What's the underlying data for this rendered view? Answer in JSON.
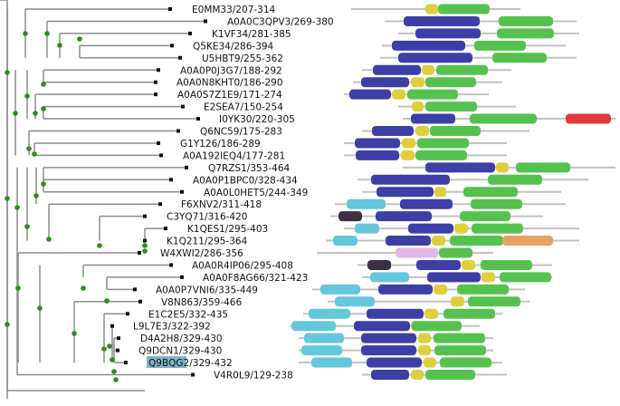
{
  "colors": {
    "tree_line": "#8c8c8c",
    "node": "#2e8b1e",
    "backbone": "#c2c2c2",
    "highlight": "#7eb4c4"
  },
  "sequences": [
    {
      "label": "E0MM33/207-314",
      "highlighted": false
    },
    {
      "label": "A0A0C3QPV3/269-380",
      "highlighted": false
    },
    {
      "label": "K1VF34/281-385",
      "highlighted": false
    },
    {
      "label": "Q5KE34/286-394",
      "highlighted": false
    },
    {
      "label": "U5HBT9/255-362",
      "highlighted": false
    },
    {
      "label": "A0A0P0J3G7/188-292",
      "highlighted": false
    },
    {
      "label": "A0A0N8KHT0/186-290",
      "highlighted": false
    },
    {
      "label": "A0A0S7Z1E9/171-274",
      "highlighted": false
    },
    {
      "label": "E2SEA7/150-254",
      "highlighted": false
    },
    {
      "label": "I0YK30/220-305",
      "highlighted": false
    },
    {
      "label": "Q6NC59/175-283",
      "highlighted": false
    },
    {
      "label": "G1Y126/186-289",
      "highlighted": false
    },
    {
      "label": "A0A192IEQ4/177-281",
      "highlighted": false
    },
    {
      "label": "Q7RZS1/353-464",
      "highlighted": false
    },
    {
      "label": "A0A0P1BPC0/328-434",
      "highlighted": false
    },
    {
      "label": "A0A0L0HET5/244-349",
      "highlighted": false
    },
    {
      "label": "F6XNV2/311-418",
      "highlighted": false
    },
    {
      "label": "C3YQ71/316-420",
      "highlighted": false
    },
    {
      "label": "K1QES1/295-403",
      "highlighted": false
    },
    {
      "label": "K1Q211/295-364",
      "highlighted": false
    },
    {
      "label": "W4XWI2/286-356",
      "highlighted": false
    },
    {
      "label": "A0A0R4IP06/295-408",
      "highlighted": false
    },
    {
      "label": "A0A0F8AG66/321-423",
      "highlighted": false
    },
    {
      "label": "A0A0P7VNI6/335-449",
      "highlighted": false
    },
    {
      "label": "V8N863/359-466",
      "highlighted": false
    },
    {
      "label": "E1C2E5/332-435",
      "highlighted": false
    },
    {
      "label": "L9L7E3/322-392",
      "highlighted": false
    },
    {
      "label": "D4A2H8/329-430",
      "highlighted": false
    },
    {
      "label": "Q9DCN1/329-430",
      "highlighted": false
    },
    {
      "label": "Q9BQG2/329-432",
      "highlighted": true
    },
    {
      "label": "V4R0L9/129-238",
      "highlighted": false
    }
  ]
}
